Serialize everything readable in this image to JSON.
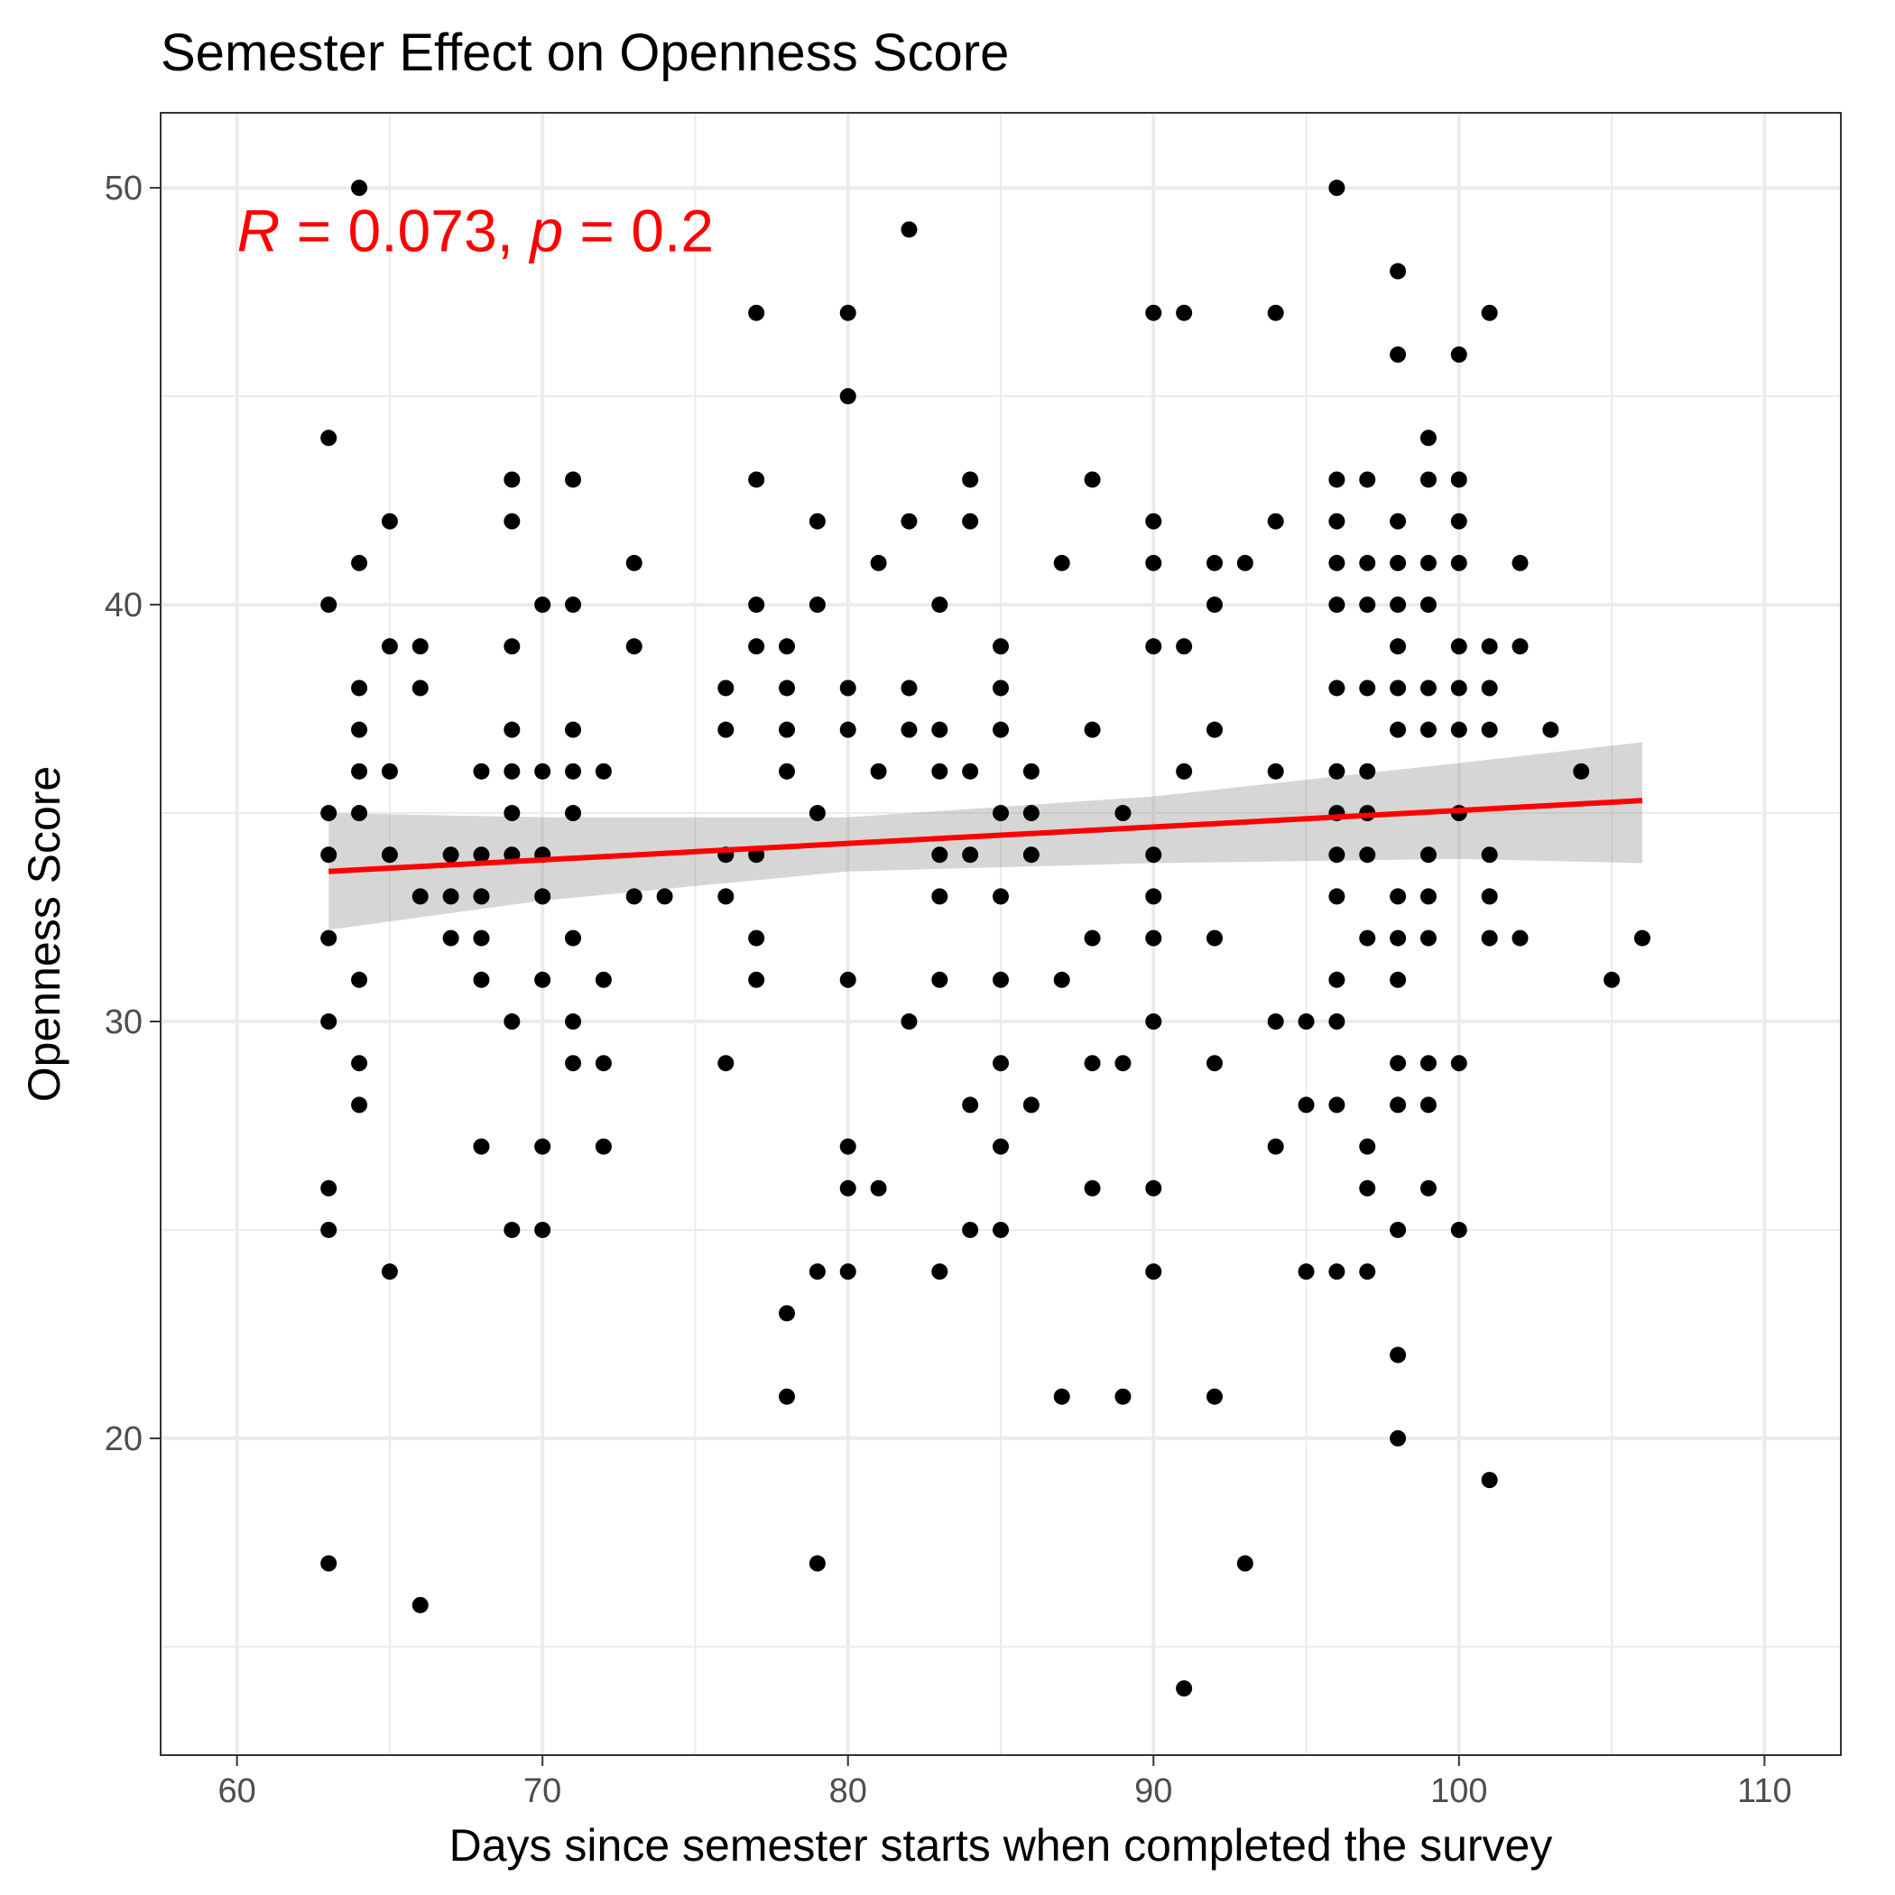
{
  "chart_data": {
    "type": "scatter",
    "title": "Semester Effect on Openness Score",
    "xlabel": "Days since semester starts when completed the survey",
    "ylabel": "Openness Score",
    "xlim": [
      57.5,
      112.5
    ],
    "ylim": [
      12.4,
      51.8
    ],
    "x_ticks": [
      60,
      70,
      80,
      90,
      100,
      110
    ],
    "y_ticks": [
      20,
      30,
      40,
      50
    ],
    "grid": true,
    "colors": {
      "points": "#000000",
      "fit_line": "#ff0000",
      "confidence_band": "#999999",
      "annotation": "#ff0000",
      "gridlines": "#ebebeb",
      "panel_border": "#333333"
    },
    "annotation": {
      "r_symbol": "R",
      "r_text": " = 0.073, ",
      "p_symbol": "p",
      "p_text": " = 0.2",
      "x": 60,
      "y": 49
    },
    "regression": {
      "x": [
        63,
        106
      ],
      "y": [
        33.6,
        35.3
      ],
      "ci_x": [
        63,
        70,
        80,
        90,
        100,
        106
      ],
      "ci_lower": [
        32.2,
        32.9,
        33.6,
        33.8,
        33.9,
        33.8
      ],
      "ci_upper": [
        35.0,
        34.9,
        34.9,
        35.4,
        36.2,
        36.7
      ]
    },
    "points": [
      [
        63,
        44
      ],
      [
        63,
        40
      ],
      [
        63,
        35
      ],
      [
        63,
        34
      ],
      [
        63,
        32
      ],
      [
        63,
        30
      ],
      [
        63,
        26
      ],
      [
        63,
        25
      ],
      [
        63,
        17
      ],
      [
        64,
        50
      ],
      [
        64,
        41
      ],
      [
        64,
        38
      ],
      [
        64,
        37
      ],
      [
        64,
        36
      ],
      [
        64,
        35
      ],
      [
        64,
        31
      ],
      [
        64,
        29
      ],
      [
        64,
        28
      ],
      [
        65,
        42
      ],
      [
        65,
        39
      ],
      [
        65,
        36
      ],
      [
        65,
        34
      ],
      [
        65,
        24
      ],
      [
        66,
        39
      ],
      [
        66,
        38
      ],
      [
        66,
        33
      ],
      [
        66,
        16
      ],
      [
        67,
        34
      ],
      [
        67,
        33
      ],
      [
        67,
        32
      ],
      [
        68,
        36
      ],
      [
        68,
        34
      ],
      [
        68,
        33
      ],
      [
        68,
        32
      ],
      [
        68,
        31
      ],
      [
        68,
        27
      ],
      [
        69,
        43
      ],
      [
        69,
        42
      ],
      [
        69,
        39
      ],
      [
        69,
        37
      ],
      [
        69,
        36
      ],
      [
        69,
        35
      ],
      [
        69,
        34
      ],
      [
        69,
        30
      ],
      [
        69,
        25
      ],
      [
        70,
        40
      ],
      [
        70,
        36
      ],
      [
        70,
        34
      ],
      [
        70,
        33
      ],
      [
        70,
        31
      ],
      [
        70,
        27
      ],
      [
        70,
        25
      ],
      [
        71,
        43
      ],
      [
        71,
        40
      ],
      [
        71,
        37
      ],
      [
        71,
        36
      ],
      [
        71,
        35
      ],
      [
        71,
        32
      ],
      [
        71,
        30
      ],
      [
        71,
        29
      ],
      [
        72,
        36
      ],
      [
        72,
        31
      ],
      [
        72,
        29
      ],
      [
        72,
        27
      ],
      [
        73,
        41
      ],
      [
        73,
        39
      ],
      [
        73,
        33
      ],
      [
        74,
        33
      ],
      [
        76,
        38
      ],
      [
        76,
        37
      ],
      [
        76,
        34
      ],
      [
        76,
        33
      ],
      [
        76,
        29
      ],
      [
        77,
        47
      ],
      [
        77,
        43
      ],
      [
        77,
        40
      ],
      [
        77,
        39
      ],
      [
        77,
        34
      ],
      [
        77,
        32
      ],
      [
        77,
        31
      ],
      [
        78,
        39
      ],
      [
        78,
        38
      ],
      [
        78,
        37
      ],
      [
        78,
        36
      ],
      [
        78,
        23
      ],
      [
        78,
        21
      ],
      [
        79,
        42
      ],
      [
        79,
        40
      ],
      [
        79,
        35
      ],
      [
        79,
        24
      ],
      [
        79,
        17
      ],
      [
        80,
        47
      ],
      [
        80,
        45
      ],
      [
        80,
        38
      ],
      [
        80,
        37
      ],
      [
        80,
        31
      ],
      [
        80,
        27
      ],
      [
        80,
        26
      ],
      [
        80,
        24
      ],
      [
        81,
        41
      ],
      [
        81,
        36
      ],
      [
        81,
        26
      ],
      [
        82,
        49
      ],
      [
        82,
        42
      ],
      [
        82,
        38
      ],
      [
        82,
        37
      ],
      [
        82,
        30
      ],
      [
        83,
        40
      ],
      [
        83,
        37
      ],
      [
        83,
        36
      ],
      [
        83,
        34
      ],
      [
        83,
        33
      ],
      [
        83,
        31
      ],
      [
        83,
        24
      ],
      [
        84,
        43
      ],
      [
        84,
        42
      ],
      [
        84,
        36
      ],
      [
        84,
        34
      ],
      [
        84,
        28
      ],
      [
        84,
        25
      ],
      [
        85,
        39
      ],
      [
        85,
        38
      ],
      [
        85,
        37
      ],
      [
        85,
        35
      ],
      [
        85,
        33
      ],
      [
        85,
        31
      ],
      [
        85,
        29
      ],
      [
        85,
        27
      ],
      [
        85,
        25
      ],
      [
        86,
        36
      ],
      [
        86,
        35
      ],
      [
        86,
        34
      ],
      [
        86,
        28
      ],
      [
        87,
        41
      ],
      [
        87,
        31
      ],
      [
        87,
        21
      ],
      [
        88,
        43
      ],
      [
        88,
        37
      ],
      [
        88,
        32
      ],
      [
        88,
        29
      ],
      [
        88,
        26
      ],
      [
        89,
        35
      ],
      [
        89,
        29
      ],
      [
        89,
        21
      ],
      [
        90,
        47
      ],
      [
        90,
        42
      ],
      [
        90,
        41
      ],
      [
        90,
        39
      ],
      [
        90,
        34
      ],
      [
        90,
        33
      ],
      [
        90,
        32
      ],
      [
        90,
        30
      ],
      [
        90,
        26
      ],
      [
        90,
        24
      ],
      [
        91,
        47
      ],
      [
        91,
        39
      ],
      [
        91,
        36
      ],
      [
        91,
        14
      ],
      [
        92,
        41
      ],
      [
        92,
        40
      ],
      [
        92,
        37
      ],
      [
        92,
        32
      ],
      [
        92,
        29
      ],
      [
        92,
        21
      ],
      [
        93,
        41
      ],
      [
        93,
        17
      ],
      [
        94,
        47
      ],
      [
        94,
        42
      ],
      [
        94,
        36
      ],
      [
        94,
        30
      ],
      [
        94,
        27
      ],
      [
        95,
        30
      ],
      [
        95,
        28
      ],
      [
        95,
        24
      ],
      [
        96,
        50
      ],
      [
        96,
        43
      ],
      [
        96,
        42
      ],
      [
        96,
        41
      ],
      [
        96,
        40
      ],
      [
        96,
        38
      ],
      [
        96,
        36
      ],
      [
        96,
        35
      ],
      [
        96,
        34
      ],
      [
        96,
        33
      ],
      [
        96,
        31
      ],
      [
        96,
        30
      ],
      [
        96,
        28
      ],
      [
        96,
        24
      ],
      [
        97,
        43
      ],
      [
        97,
        41
      ],
      [
        97,
        40
      ],
      [
        97,
        38
      ],
      [
        97,
        36
      ],
      [
        97,
        35
      ],
      [
        97,
        34
      ],
      [
        97,
        32
      ],
      [
        97,
        27
      ],
      [
        97,
        26
      ],
      [
        97,
        24
      ],
      [
        98,
        48
      ],
      [
        98,
        46
      ],
      [
        98,
        42
      ],
      [
        98,
        41
      ],
      [
        98,
        40
      ],
      [
        98,
        39
      ],
      [
        98,
        38
      ],
      [
        98,
        37
      ],
      [
        98,
        33
      ],
      [
        98,
        32
      ],
      [
        98,
        31
      ],
      [
        98,
        29
      ],
      [
        98,
        28
      ],
      [
        98,
        25
      ],
      [
        98,
        22
      ],
      [
        98,
        20
      ],
      [
        99,
        44
      ],
      [
        99,
        43
      ],
      [
        99,
        41
      ],
      [
        99,
        40
      ],
      [
        99,
        38
      ],
      [
        99,
        37
      ],
      [
        99,
        34
      ],
      [
        99,
        33
      ],
      [
        99,
        32
      ],
      [
        99,
        29
      ],
      [
        99,
        28
      ],
      [
        99,
        26
      ],
      [
        100,
        46
      ],
      [
        100,
        43
      ],
      [
        100,
        42
      ],
      [
        100,
        41
      ],
      [
        100,
        39
      ],
      [
        100,
        38
      ],
      [
        100,
        37
      ],
      [
        100,
        35
      ],
      [
        100,
        29
      ],
      [
        100,
        25
      ],
      [
        101,
        47
      ],
      [
        101,
        39
      ],
      [
        101,
        38
      ],
      [
        101,
        37
      ],
      [
        101,
        34
      ],
      [
        101,
        33
      ],
      [
        101,
        32
      ],
      [
        101,
        19
      ],
      [
        102,
        41
      ],
      [
        102,
        39
      ],
      [
        102,
        32
      ],
      [
        103,
        37
      ],
      [
        104,
        36
      ],
      [
        105,
        31
      ],
      [
        106,
        32
      ]
    ]
  }
}
